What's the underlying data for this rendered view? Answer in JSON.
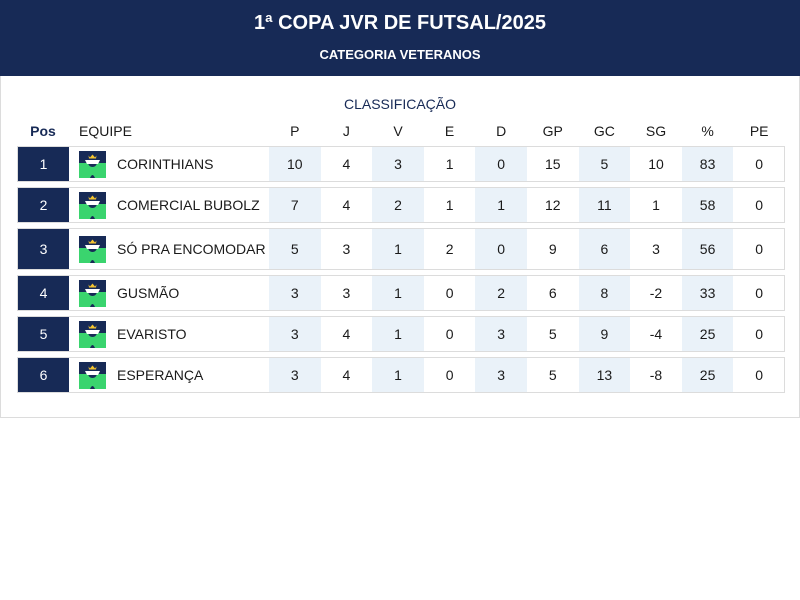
{
  "header": {
    "title": "1ª COPA JVR DE FUTSAL/2025",
    "subtitle": "CATEGORIA VETERANOS"
  },
  "table": {
    "section_title": "CLASSIFICAÇÃO",
    "columns": {
      "pos": "Pos",
      "team": "EQUIPE",
      "stats": [
        "P",
        "J",
        "V",
        "E",
        "D",
        "GP",
        "GC",
        "SG",
        "%",
        "PE"
      ]
    },
    "crest_icon": "team-crest-icon",
    "colors": {
      "header_bg": "#172a56",
      "shade": "#eaf2f9",
      "crest_green": "#3ad46e",
      "crest_gold": "#f4c430"
    },
    "rows": [
      {
        "pos": "1",
        "team": "CORINTHIANS",
        "stats": [
          "10",
          "4",
          "3",
          "1",
          "0",
          "15",
          "5",
          "10",
          "83",
          "0"
        ]
      },
      {
        "pos": "2",
        "team": "COMERCIAL BUBOLZ",
        "stats": [
          "7",
          "4",
          "2",
          "1",
          "1",
          "12",
          "11",
          "1",
          "58",
          "0"
        ]
      },
      {
        "pos": "3",
        "team": "SÓ PRA ENCOMODAR",
        "stats": [
          "5",
          "3",
          "1",
          "2",
          "0",
          "9",
          "6",
          "3",
          "56",
          "0"
        ]
      },
      {
        "pos": "4",
        "team": "GUSMÃO",
        "stats": [
          "3",
          "3",
          "1",
          "0",
          "2",
          "6",
          "8",
          "-2",
          "33",
          "0"
        ]
      },
      {
        "pos": "5",
        "team": "EVARISTO",
        "stats": [
          "3",
          "4",
          "1",
          "0",
          "3",
          "5",
          "9",
          "-4",
          "25",
          "0"
        ]
      },
      {
        "pos": "6",
        "team": "ESPERANÇA",
        "stats": [
          "3",
          "4",
          "1",
          "0",
          "3",
          "5",
          "13",
          "-8",
          "25",
          "0"
        ]
      }
    ]
  }
}
